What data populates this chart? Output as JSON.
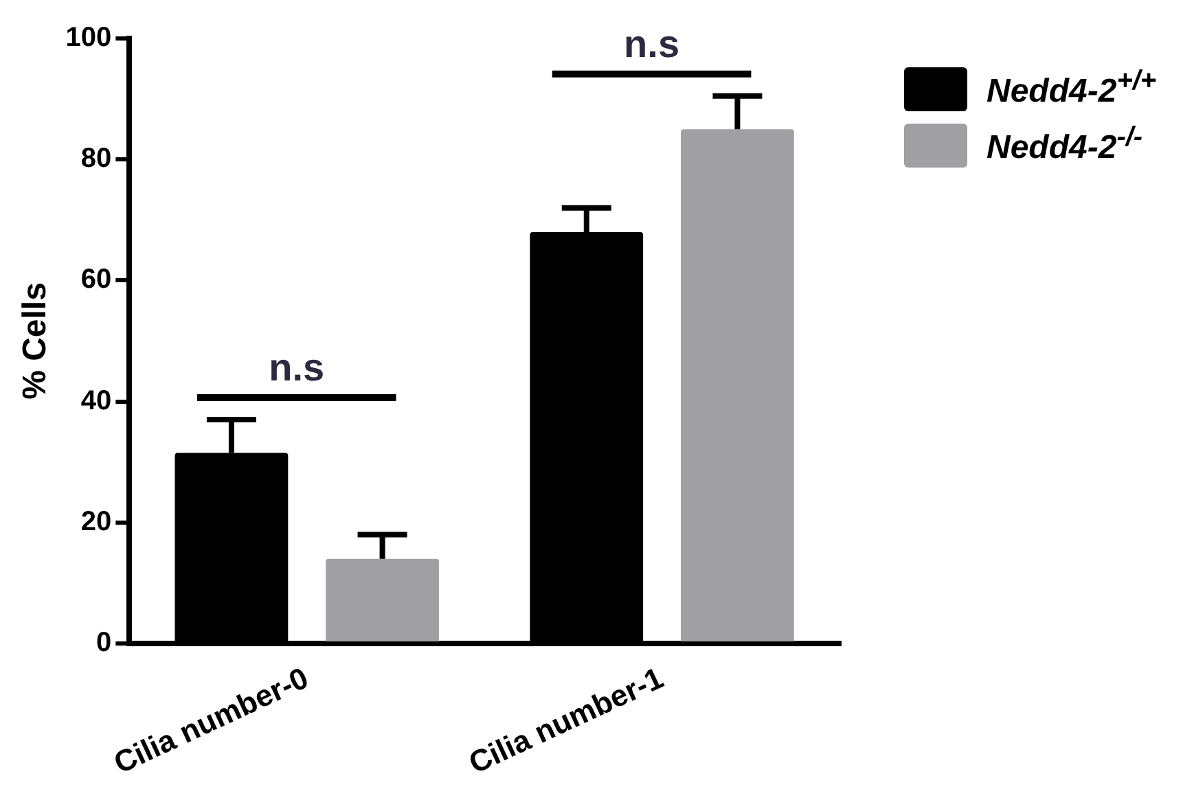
{
  "chart_data": {
    "type": "bar",
    "ylabel": "% Cells",
    "categories": [
      "Cilia number-0",
      "Cilia number-1"
    ],
    "series": [
      {
        "name": "Nedd4-2$^{+/+}$",
        "color": "#000000",
        "values": [
          31.5,
          68
        ],
        "errors": [
          5.5,
          4
        ]
      },
      {
        "name": "Nedd4-2$^{-/-}$",
        "color": "#a0a0a4",
        "values": [
          14,
          85
        ],
        "errors": [
          4,
          5.5
        ]
      }
    ],
    "ylim": [
      0,
      100
    ],
    "yticks": [
      0,
      20,
      40,
      60,
      80,
      100
    ],
    "grid": false,
    "legend": "top right",
    "annotations": [
      "n.s",
      "n.s"
    ]
  }
}
